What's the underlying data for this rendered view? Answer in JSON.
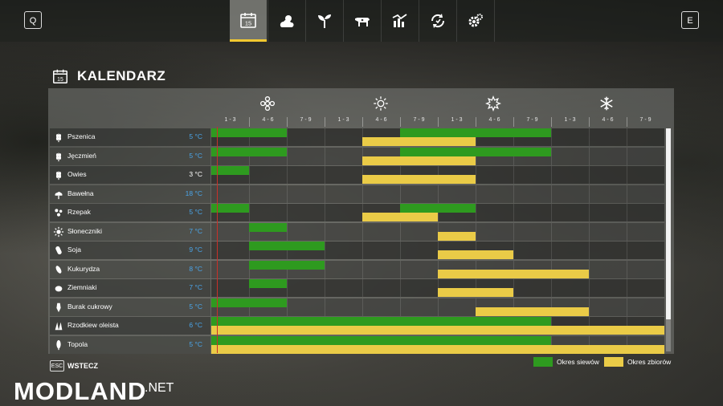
{
  "header": {
    "left_key": "Q",
    "right_key": "E",
    "calendar_icon_day": "15",
    "tabs": [
      {
        "icon": "calendar-icon",
        "active": true
      },
      {
        "icon": "weather-icon",
        "active": false
      },
      {
        "icon": "sprout-icon",
        "active": false
      },
      {
        "icon": "cow-icon",
        "active": false
      },
      {
        "icon": "stats-icon",
        "active": false
      },
      {
        "icon": "cycle-icon",
        "active": false
      },
      {
        "icon": "settings-icon",
        "active": false
      }
    ]
  },
  "page": {
    "title": "KALENDARZ",
    "title_icon_day": "15"
  },
  "calendar": {
    "seasons": [
      {
        "icon": "spring-flower-icon"
      },
      {
        "icon": "summer-sun-icon"
      },
      {
        "icon": "autumn-leaf-icon"
      },
      {
        "icon": "winter-snowflake-icon"
      }
    ],
    "months": [
      "1 - 3",
      "4 - 6",
      "7 - 9",
      "1 - 3",
      "4 - 6",
      "7 - 9",
      "1 - 3",
      "4 - 6",
      "7 - 9",
      "1 - 3",
      "4 - 6",
      "7 - 9"
    ],
    "crops": [
      {
        "name": "Pszenica",
        "temp": "5 °C",
        "icon": "wheat-icon",
        "sow": [
          [
            0,
            2
          ],
          [
            5,
            9
          ]
        ],
        "harvest": [
          [
            4,
            7
          ]
        ]
      },
      {
        "name": "Jęczmień",
        "temp": "5 °C",
        "icon": "barley-icon",
        "sow": [
          [
            0,
            2
          ],
          [
            5,
            9
          ]
        ],
        "harvest": [
          [
            4,
            7
          ]
        ]
      },
      {
        "name": "Owies",
        "temp": "3 °C",
        "icon": "oats-icon",
        "sow": [
          [
            0,
            1
          ]
        ],
        "harvest": [
          [
            4,
            7
          ]
        ]
      },
      {
        "name": "Bawełna",
        "temp": "18 °C",
        "icon": "cotton-icon",
        "sow": [],
        "harvest": []
      },
      {
        "name": "Rzepak",
        "temp": "5 °C",
        "icon": "canola-icon",
        "sow": [
          [
            0,
            1
          ],
          [
            5,
            7
          ]
        ],
        "harvest": [
          [
            4,
            6
          ]
        ]
      },
      {
        "name": "Słoneczniki",
        "temp": "7 °C",
        "icon": "sunflower-icon",
        "sow": [
          [
            1,
            2
          ]
        ],
        "harvest": [
          [
            6,
            7
          ]
        ]
      },
      {
        "name": "Soja",
        "temp": "9 °C",
        "icon": "soybean-icon",
        "sow": [
          [
            1,
            3
          ]
        ],
        "harvest": [
          [
            6,
            8
          ]
        ]
      },
      {
        "name": "Kukurydza",
        "temp": "8 °C",
        "icon": "corn-icon",
        "sow": [
          [
            1,
            3
          ]
        ],
        "harvest": [
          [
            6,
            10
          ]
        ]
      },
      {
        "name": "Ziemniaki",
        "temp": "7 °C",
        "icon": "potato-icon",
        "sow": [
          [
            1,
            2
          ]
        ],
        "harvest": [
          [
            6,
            8
          ]
        ]
      },
      {
        "name": "Burak cukrowy",
        "temp": "5 °C",
        "icon": "sugarbeet-icon",
        "sow": [
          [
            0,
            2
          ]
        ],
        "harvest": [
          [
            7,
            10
          ]
        ]
      },
      {
        "name": "Rzodkiew oleista",
        "temp": "6 °C",
        "icon": "oilradish-icon",
        "sow": [
          [
            0,
            9
          ]
        ],
        "harvest": [
          [
            0,
            12
          ]
        ]
      },
      {
        "name": "Topola",
        "temp": "5 °C",
        "icon": "poplar-icon",
        "sow": [
          [
            0,
            9
          ]
        ],
        "harvest": [
          [
            0,
            12
          ]
        ]
      }
    ]
  },
  "footer": {
    "esc_key": "ESC",
    "back_label": "WSTECZ",
    "legend": [
      {
        "label": "Okres siewów",
        "color": "#2e9a1f"
      },
      {
        "label": "Okres zbiorów",
        "color": "#eacb47"
      }
    ]
  },
  "watermark": {
    "main": "MODLAND",
    "suffix": ".NET"
  },
  "colors": {
    "sow": "#2e9a1f",
    "harvest": "#eacb47",
    "temp_blue": "#4aa4e8",
    "accent": "#f2c830"
  }
}
